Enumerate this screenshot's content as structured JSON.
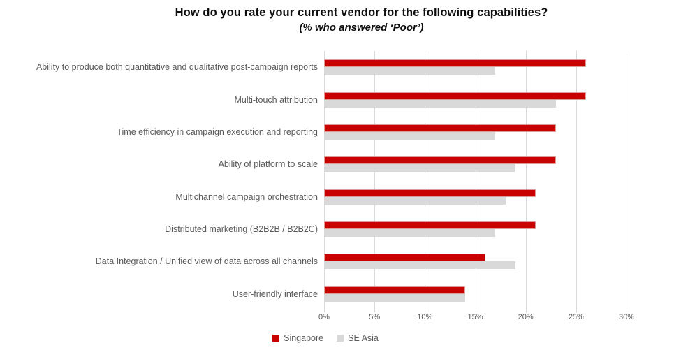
{
  "title": "How do you rate your current vendor for the following capabilities?",
  "subtitle": "(% who answered ‘Poor’)",
  "chart_data": {
    "type": "bar",
    "orientation": "horizontal",
    "title": "How do you rate your current vendor for the following capabilities?",
    "subtitle": "(% who answered ‘Poor’)",
    "categories": [
      "Ability to produce both quantitative and qualitative post-campaign reports",
      "Multi-touch attribution",
      "Time efficiency in campaign execution and reporting",
      "Ability of platform to scale",
      "Multichannel campaign orchestration",
      "Distributed marketing (B2B2B / B2B2C)",
      "Data Integration / Unified view of data across all channels",
      "User-friendly interface"
    ],
    "series": [
      {
        "name": "Singapore",
        "color": "#c80101",
        "values": [
          26,
          26,
          23,
          23,
          21,
          21,
          16,
          14
        ]
      },
      {
        "name": "SE Asia",
        "color": "#d9d9d9",
        "values": [
          17,
          23,
          17,
          19,
          18,
          17,
          19,
          14
        ]
      }
    ],
    "xlim": [
      0,
      30
    ],
    "x_tick_step": 5,
    "x_tick_labels": [
      "0%",
      "5%",
      "10%",
      "15%",
      "20%",
      "25%",
      "30%"
    ],
    "xlabel": "",
    "ylabel": "",
    "grid": "vertical",
    "legend_position": "bottom",
    "value_unit": "%"
  },
  "legend": {
    "items": [
      {
        "label": "Singapore",
        "color": "#c80101"
      },
      {
        "label": "SE Asia",
        "color": "#d9d9d9"
      }
    ]
  }
}
